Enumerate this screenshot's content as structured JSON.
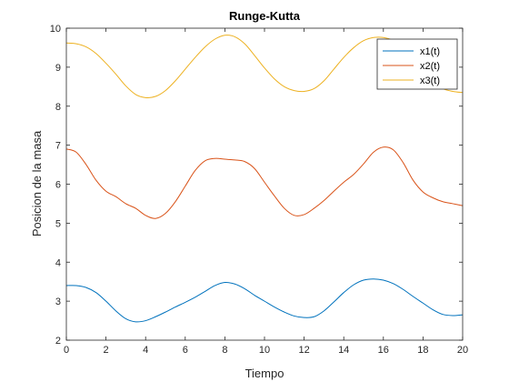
{
  "chart_data": {
    "type": "line",
    "title": "Runge-Kutta",
    "xlabel": "Tiempo",
    "ylabel": "Posicion de la masa",
    "xlim": [
      0,
      20
    ],
    "ylim": [
      2,
      10
    ],
    "xticks": [
      0,
      2,
      4,
      6,
      8,
      10,
      12,
      14,
      16,
      18,
      20
    ],
    "yticks": [
      2,
      3,
      4,
      5,
      6,
      7,
      8,
      9,
      10
    ],
    "grid": false,
    "legend_position": "top-right",
    "x": [
      0,
      0.5,
      1,
      1.5,
      2,
      2.5,
      3,
      3.5,
      4,
      4.5,
      5,
      5.5,
      6,
      6.5,
      7,
      7.5,
      8,
      8.5,
      9,
      9.5,
      10,
      10.5,
      11,
      11.5,
      12,
      12.5,
      13,
      13.5,
      14,
      14.5,
      15,
      15.5,
      16,
      16.5,
      17,
      17.5,
      18,
      18.5,
      19,
      19.5,
      20
    ],
    "series": [
      {
        "name": "x1(t)",
        "color": "#0072BD",
        "values": [
          3.4,
          3.4,
          3.35,
          3.22,
          3.0,
          2.75,
          2.55,
          2.47,
          2.5,
          2.6,
          2.72,
          2.85,
          2.97,
          3.1,
          3.25,
          3.4,
          3.48,
          3.44,
          3.32,
          3.15,
          3.0,
          2.85,
          2.72,
          2.62,
          2.58,
          2.6,
          2.75,
          2.98,
          3.22,
          3.42,
          3.54,
          3.57,
          3.54,
          3.45,
          3.3,
          3.12,
          2.95,
          2.78,
          2.66,
          2.63,
          2.65
        ]
      },
      {
        "name": "x2(t)",
        "color": "#D95319",
        "values": [
          6.9,
          6.82,
          6.5,
          6.1,
          5.82,
          5.68,
          5.5,
          5.38,
          5.2,
          5.12,
          5.25,
          5.55,
          5.95,
          6.35,
          6.6,
          6.66,
          6.64,
          6.62,
          6.58,
          6.4,
          6.05,
          5.7,
          5.38,
          5.2,
          5.22,
          5.38,
          5.58,
          5.82,
          6.05,
          6.25,
          6.52,
          6.82,
          6.95,
          6.88,
          6.55,
          6.1,
          5.8,
          5.65,
          5.55,
          5.5,
          5.45
        ]
      },
      {
        "name": "x3(t)",
        "color": "#EDB120",
        "values": [
          9.62,
          9.6,
          9.52,
          9.35,
          9.1,
          8.82,
          8.52,
          8.3,
          8.22,
          8.25,
          8.4,
          8.65,
          8.95,
          9.25,
          9.52,
          9.72,
          9.82,
          9.78,
          9.6,
          9.3,
          8.98,
          8.7,
          8.5,
          8.4,
          8.38,
          8.45,
          8.65,
          8.95,
          9.25,
          9.5,
          9.68,
          9.76,
          9.76,
          9.68,
          9.48,
          9.18,
          8.88,
          8.62,
          8.45,
          8.38,
          8.35
        ]
      }
    ]
  }
}
